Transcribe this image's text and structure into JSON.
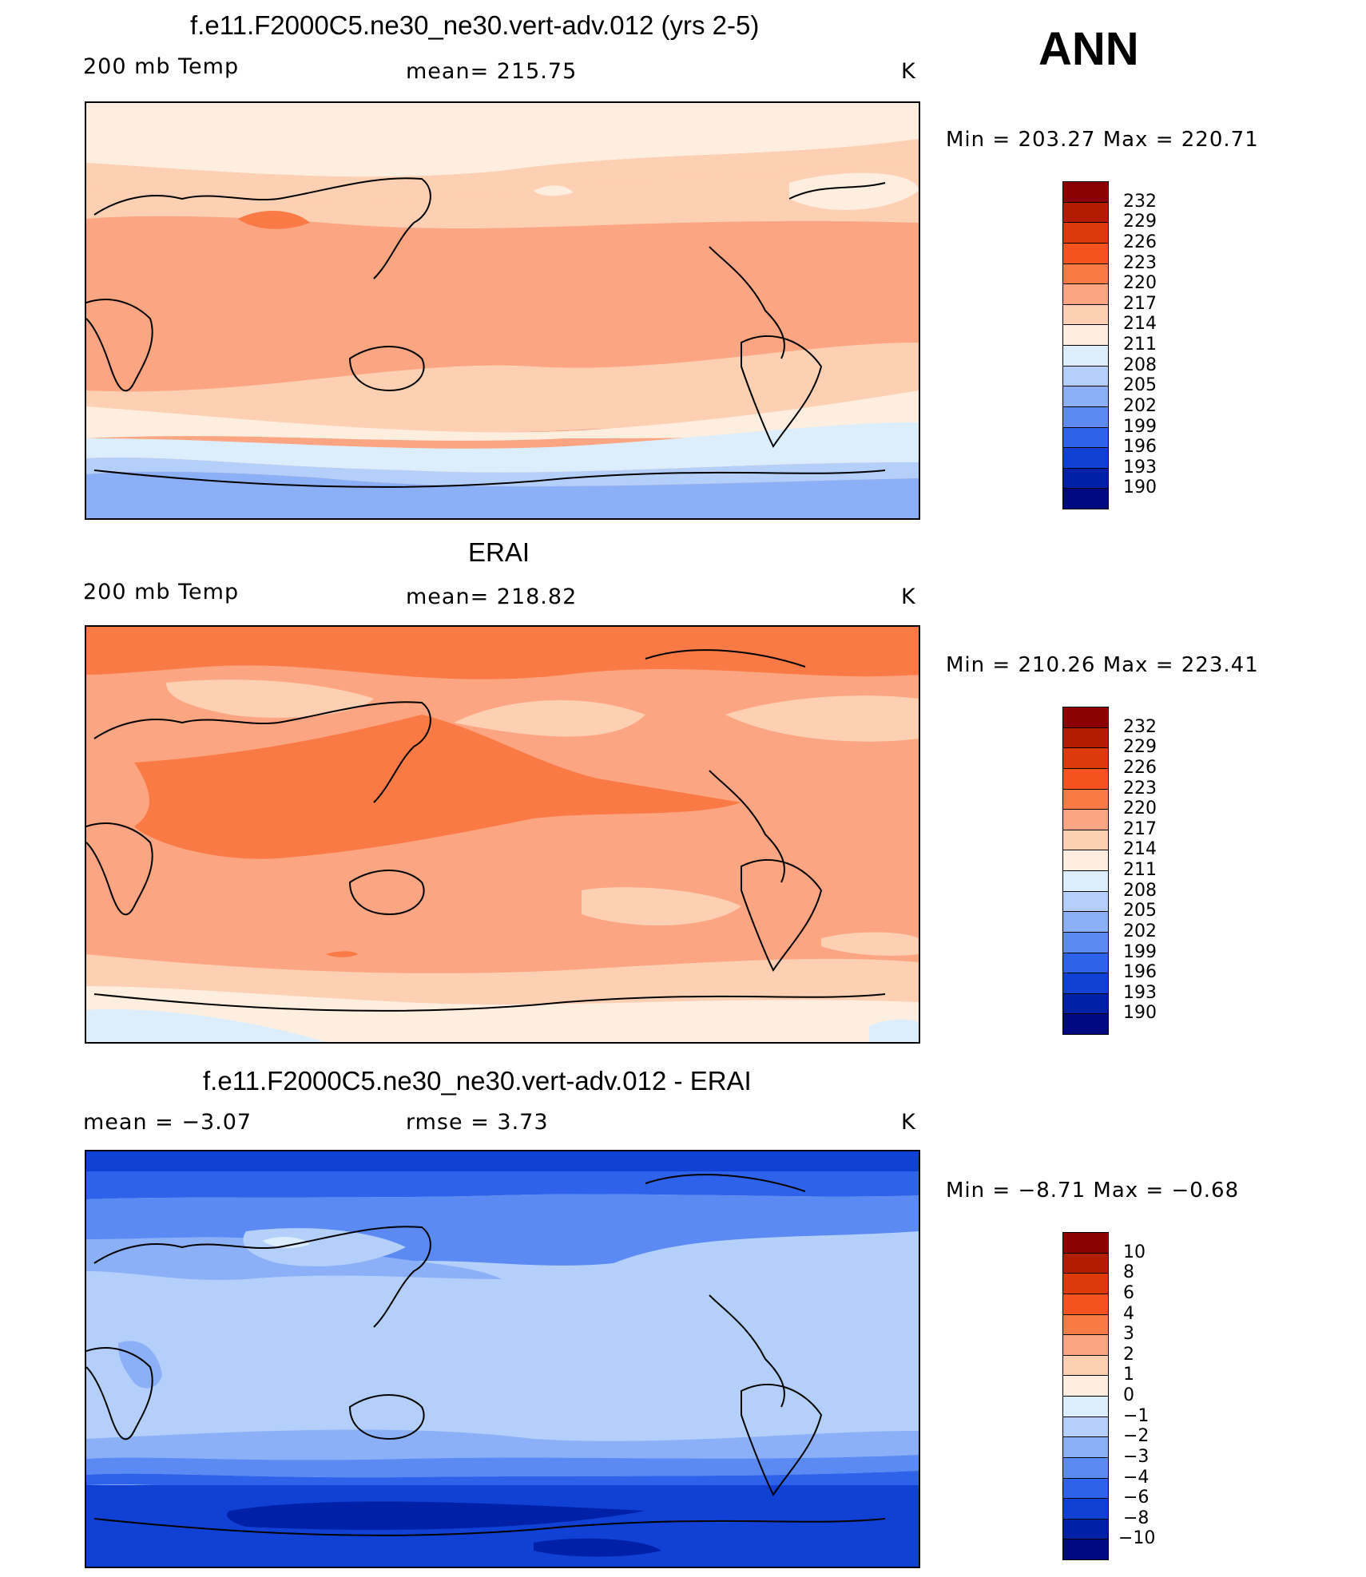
{
  "corner_label": "ANN",
  "panels": [
    {
      "title": "f.e11.F2000C5.ne30_ne30.vert-adv.012 (yrs 2-5)",
      "left_label": "200 mb Temp",
      "center_label": "mean=  215.75",
      "units": "K",
      "minmax": "Min  =  203.27  Max  =  220.71"
    },
    {
      "title": "ERAI",
      "left_label": "200 mb Temp",
      "center_label": "mean=  218.82",
      "units": "K",
      "minmax": "Min  =  210.26  Max  =  223.41"
    },
    {
      "title": "f.e11.F2000C5.ne30_ne30.vert-adv.012 - ERAI",
      "left_label": "mean  =    −3.07",
      "center_label": "rmse  =     3.73",
      "units": "K",
      "minmax": "Min  =    −8.71  Max  =   −0.68"
    }
  ],
  "colorbars": {
    "temperature": {
      "labels": [
        "232",
        "229",
        "226",
        "223",
        "220",
        "217",
        "214",
        "211",
        "208",
        "205",
        "202",
        "199",
        "196",
        "193",
        "190"
      ],
      "colors": [
        "#8b0000",
        "#b41c00",
        "#dc3a0a",
        "#f4521e",
        "#fa7a46",
        "#fca582",
        "#fdd0b4",
        "#feeee0",
        "#dceefb",
        "#b4d0fa",
        "#8cb0f8",
        "#5a8af2",
        "#2e62ea",
        "#1040d4",
        "#0020a8",
        "#000a80"
      ]
    },
    "difference": {
      "labels": [
        "10",
        "8",
        "6",
        "4",
        "3",
        "2",
        "1",
        "0",
        "−1",
        "−2",
        "−3",
        "−4",
        "−6",
        "−8",
        "−10"
      ],
      "colors": [
        "#8b0000",
        "#b41c00",
        "#dc3a0a",
        "#f4521e",
        "#fa7a46",
        "#fca582",
        "#fdd0b4",
        "#feeee0",
        "#dceefb",
        "#b4d0fa",
        "#8cb0f8",
        "#5a8af2",
        "#2e62ea",
        "#1040d4",
        "#0020a8",
        "#000a80"
      ]
    }
  },
  "chart_data": [
    {
      "type": "heatmap",
      "title": "f.e11.F2000C5.ne30_ne30.vert-adv.012 (yrs 2-5)",
      "variable": "200 mb Temp",
      "units": "K",
      "mean": 215.75,
      "min": 203.27,
      "max": 220.71,
      "levels": [
        190,
        193,
        196,
        199,
        202,
        205,
        208,
        211,
        214,
        217,
        220,
        223,
        226,
        229,
        232
      ],
      "zonal_bands": [
        {
          "lat_range": [
            60,
            90
          ],
          "value_range": [
            211,
            214
          ]
        },
        {
          "lat_range": [
            30,
            60
          ],
          "value_range": [
            214,
            217
          ]
        },
        {
          "lat_range": [
            -40,
            30
          ],
          "value_range": [
            217,
            220
          ]
        },
        {
          "lat_range": [
            -55,
            -40
          ],
          "value_range": [
            211,
            214
          ]
        },
        {
          "lat_range": [
            -65,
            -55
          ],
          "value_range": [
            208,
            211
          ]
        },
        {
          "lat_range": [
            -90,
            -65
          ],
          "value_range": [
            202,
            205
          ]
        }
      ]
    },
    {
      "type": "heatmap",
      "title": "ERAI",
      "variable": "200 mb Temp",
      "units": "K",
      "mean": 218.82,
      "min": 210.26,
      "max": 223.41,
      "levels": [
        190,
        193,
        196,
        199,
        202,
        205,
        208,
        211,
        214,
        217,
        220,
        223,
        226,
        229,
        232
      ],
      "zonal_bands": [
        {
          "lat_range": [
            60,
            90
          ],
          "value_range": [
            220,
            223
          ]
        },
        {
          "lat_range": [
            35,
            60
          ],
          "value_range": [
            214,
            217
          ]
        },
        {
          "lat_range": [
            -40,
            35
          ],
          "value_range": [
            220,
            223
          ]
        },
        {
          "lat_range": [
            -60,
            -40
          ],
          "value_range": [
            217,
            220
          ]
        },
        {
          "lat_range": [
            -80,
            -60
          ],
          "value_range": [
            211,
            214
          ]
        },
        {
          "lat_range": [
            -90,
            -80
          ],
          "value_range": [
            208,
            211
          ]
        }
      ]
    },
    {
      "type": "heatmap",
      "title": "f.e11.F2000C5.ne30_ne30.vert-adv.012 - ERAI",
      "units": "K",
      "mean": -3.07,
      "rmse": 3.73,
      "min": -8.71,
      "max": -0.68,
      "levels": [
        -10,
        -8,
        -6,
        -4,
        -3,
        -2,
        -1,
        0,
        1,
        2,
        3,
        4,
        6,
        8,
        10
      ],
      "zonal_bands": [
        {
          "lat_range": [
            70,
            90
          ],
          "value_range": [
            -8,
            -6
          ]
        },
        {
          "lat_range": [
            55,
            70
          ],
          "value_range": [
            -6,
            -4
          ]
        },
        {
          "lat_range": [
            30,
            55
          ],
          "value_range": [
            -3,
            -2
          ]
        },
        {
          "lat_range": [
            -40,
            30
          ],
          "value_range": [
            -2,
            -1
          ]
        },
        {
          "lat_range": [
            -55,
            -40
          ],
          "value_range": [
            -4,
            -3
          ]
        },
        {
          "lat_range": [
            -75,
            -55
          ],
          "value_range": [
            -8,
            -6
          ]
        },
        {
          "lat_range": [
            -90,
            -75
          ],
          "value_range": [
            -8,
            -6
          ]
        }
      ]
    }
  ]
}
